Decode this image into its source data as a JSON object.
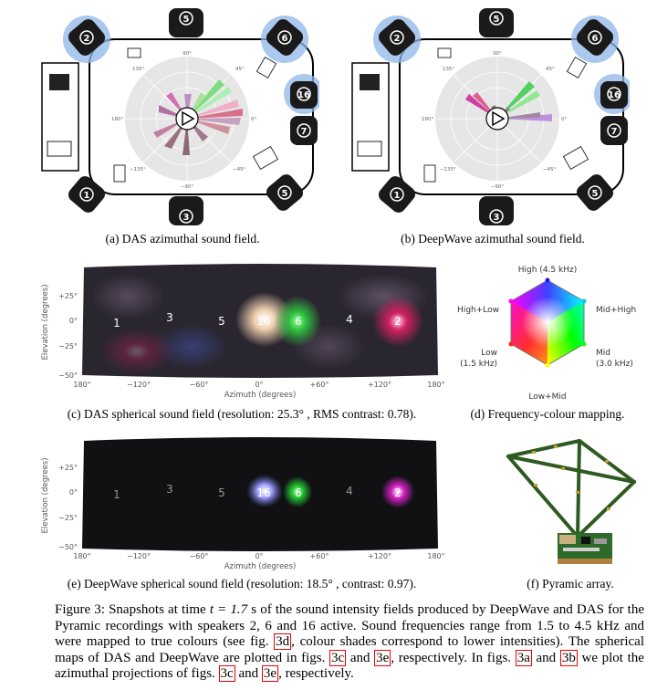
{
  "panels": {
    "a": {
      "caption": "(a) DAS azimuthal sound field.",
      "seats": [
        "1",
        "2",
        "3",
        "4",
        "5",
        "6",
        "7",
        "16"
      ],
      "active_speakers": [
        "2",
        "6",
        "16"
      ],
      "polar_labels": [
        "90°",
        "45°",
        "0°",
        "−45°",
        "−90°",
        "−135°",
        "180°",
        "135°"
      ]
    },
    "b": {
      "caption": "(b) DeepWave azimuthal sound field.",
      "seats": [
        "1",
        "2",
        "3",
        "4",
        "5",
        "6",
        "7",
        "16"
      ],
      "active_speakers": [
        "2",
        "6",
        "16"
      ],
      "polar_labels": [
        "90°",
        "45°",
        "0°",
        "−45°",
        "−90°",
        "−135°",
        "180°",
        "135°"
      ]
    },
    "c": {
      "caption": "(c) DAS spherical sound field (resolution: 25.3° , RMS contrast: 0.78).",
      "ylabel": "Elevation (degrees)",
      "xlabel": "Azimuth (degrees)",
      "yticks": [
        "+25°",
        "0°",
        "−25°",
        "−50°"
      ],
      "xticks": [
        "180°",
        "−120°",
        "−60°",
        "0°",
        "+60°",
        "+120°",
        "180°"
      ],
      "speakers": [
        "1",
        "3",
        "5",
        "16",
        "6",
        "4",
        "2"
      ]
    },
    "d": {
      "caption": "(d) Frequency-colour mapping.",
      "labels": {
        "top": "High (4.5 kHz)",
        "upper_left": "High+Low",
        "upper_right": "Mid+High",
        "left": "Low",
        "left2": "(1.5 kHz)",
        "right": "Mid",
        "right2": "(3.0 kHz)",
        "bottom": "Low+Mid"
      }
    },
    "e": {
      "caption": "(e) DeepWave spherical sound field (resolution: 18.5° , contrast: 0.97).",
      "ylabel": "Elevation (degrees)",
      "xlabel": "Azimuth (degrees)",
      "yticks": [
        "+25°",
        "0°",
        "−25°",
        "−50°"
      ],
      "xticks": [
        "180°",
        "−120°",
        "−60°",
        "0°",
        "+60°",
        "+120°",
        "180°"
      ],
      "speakers": [
        "1",
        "3",
        "5",
        "16",
        "6",
        "4",
        "2"
      ]
    },
    "f": {
      "caption": "(f) Pyramic array."
    }
  },
  "figure_caption": {
    "p1": "Figure 3: Snapshots at time ",
    "p2": "t = 1.7",
    "p3": " s of the sound intensity fields produced by DeepWave and DAS for the Pyramic recordings with speakers 2, 6 and 16 active. Sound frequencies range from 1.5 to 4.5 kHz and were mapped to true colours (see fig. ",
    "r1": "3d",
    "p4": ", colour shades correspond to lower intensities). The spherical maps of DAS and DeepWave are plotted in figs. ",
    "r2": "3c",
    "p5": " and ",
    "r3": "3e",
    "p6": ", respectively. In figs. ",
    "r4": "3a",
    "p7": " and ",
    "r5": "3b",
    "p8": " we plot the azimuthal projections of figs. ",
    "r6": "3c",
    "p9": " and ",
    "r7": "3e",
    "p10": ", respectively."
  },
  "colors": {
    "seat": "#1a1a1a",
    "active_halo": "#8fb5e8",
    "polar_bg": "#e6e6e6",
    "field_bg": "#15151a",
    "caption_ref_box": "#e00000"
  }
}
